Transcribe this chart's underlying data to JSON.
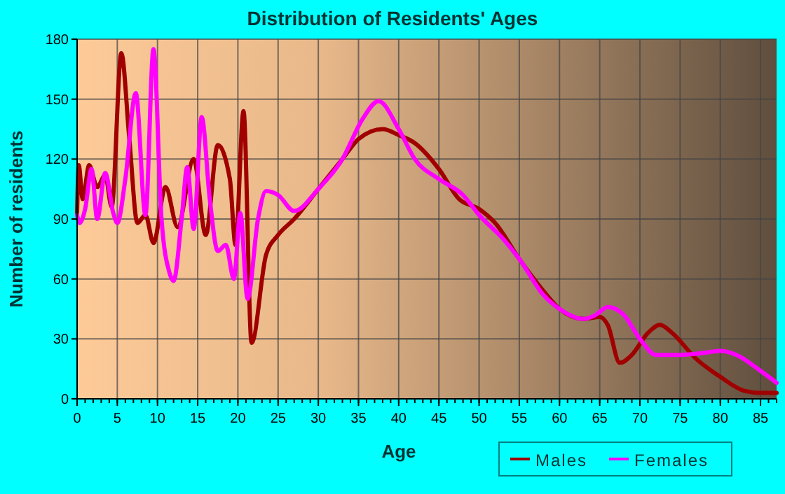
{
  "chart_data": {
    "type": "line",
    "title": "Distribution of Residents' Ages",
    "xlabel": "Age",
    "ylabel": "Number of residents",
    "xlim": [
      0,
      87
    ],
    "ylim": [
      0,
      180
    ],
    "xticks": [
      0,
      5,
      10,
      15,
      20,
      25,
      30,
      35,
      40,
      45,
      50,
      55,
      60,
      65,
      70,
      75,
      80,
      85
    ],
    "yticks": [
      0,
      30,
      60,
      90,
      120,
      150,
      180
    ],
    "grid": true,
    "legend": "bottom",
    "line_style": "solid",
    "marker": "none",
    "series": [
      {
        "name": "Males",
        "color": "#a00000",
        "x": [
          0,
          0.2,
          0.7,
          1.5,
          2.5,
          3.5,
          4.3,
          5.5,
          6.5,
          7.5,
          8.5,
          9.5,
          11,
          12.5,
          14.5,
          16,
          17.5,
          19,
          19.7,
          20.7,
          21.7,
          23.5,
          25,
          27,
          30,
          33,
          35,
          38,
          40,
          42,
          45,
          47.5,
          50,
          52,
          55,
          58,
          60,
          63,
          65,
          66,
          67.5,
          69,
          71,
          72.5,
          74,
          77,
          80,
          83,
          85,
          87
        ],
        "values": [
          93,
          117,
          100,
          117,
          106,
          112,
          96,
          173,
          130,
          88,
          92,
          78,
          106,
          86,
          120,
          82,
          127,
          110,
          77,
          144,
          28,
          72,
          82,
          90,
          105,
          120,
          130,
          135,
          132,
          128,
          115,
          100,
          95,
          88,
          70,
          54,
          45,
          40,
          41,
          37,
          18,
          22,
          33,
          37,
          33,
          20,
          11,
          4,
          3,
          3
        ]
      },
      {
        "name": "Females",
        "color": "#ff00ff",
        "x": [
          0,
          0.3,
          1,
          1.8,
          2.5,
          3.5,
          4.5,
          5,
          6,
          7.3,
          8.5,
          9.5,
          10.5,
          11.5,
          12,
          13,
          13.7,
          14.5,
          15.5,
          16.5,
          17.5,
          18.5,
          19.5,
          20.3,
          21.2,
          22.5,
          23.5,
          25,
          27,
          30,
          33,
          35.5,
          37.5,
          40,
          42,
          45,
          48,
          50,
          53,
          55,
          58,
          60,
          63,
          64.5,
          66,
          68,
          70,
          72,
          75,
          78,
          80,
          82,
          85,
          87
        ],
        "values": [
          92,
          88,
          95,
          115,
          90,
          113,
          93,
          88,
          110,
          153,
          92,
          175,
          90,
          63,
          59,
          90,
          116,
          85,
          141,
          100,
          74,
          77,
          60,
          93,
          50,
          90,
          104,
          102,
          94,
          105,
          120,
          140,
          149,
          135,
          120,
          110,
          102,
          92,
          80,
          70,
          52,
          45,
          40,
          42,
          46,
          42,
          30,
          22,
          22,
          23,
          24,
          22,
          14,
          8
        ]
      }
    ]
  }
}
